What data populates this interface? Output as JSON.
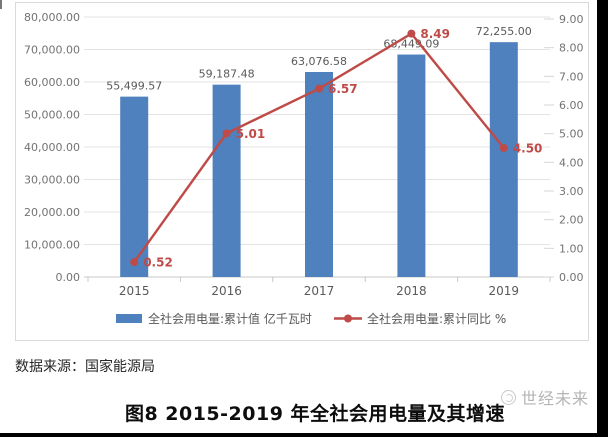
{
  "page": {
    "source_note": "数据来源：国家能源局",
    "caption": "图8 2015-2019 年全社会用电量及其增速",
    "watermark": "世经未来"
  },
  "chart_data": {
    "type": "bar",
    "subtype": "bar+line combo, dual axis",
    "categories": [
      "2015",
      "2016",
      "2017",
      "2018",
      "2019"
    ],
    "series": [
      {
        "name": "全社会用电量:累计值 亿千瓦时",
        "type": "bar",
        "axis": "left",
        "values": [
          55499.57,
          59187.48,
          63076.58,
          68449.09,
          72255.0
        ],
        "value_labels": [
          "55,499.57",
          "59,187.48",
          "63,076.58",
          "68,449.09",
          "72,255.00"
        ],
        "color": "#4e81bd"
      },
      {
        "name": "全社会用电量:累计同比 %",
        "type": "line",
        "axis": "right",
        "values": [
          0.52,
          5.01,
          6.57,
          8.49,
          4.5
        ],
        "value_labels": [
          "0.52",
          "5.01",
          "6.57",
          "8.49",
          "4.50"
        ],
        "color": "#be4b48"
      }
    ],
    "left_axis": {
      "min": 0,
      "max": 80000,
      "step": 10000,
      "ticks": [
        "0.00",
        "10,000.00",
        "20,000.00",
        "30,000.00",
        "40,000.00",
        "50,000.00",
        "60,000.00",
        "70,000.00",
        "80,000.00"
      ]
    },
    "right_axis": {
      "min": 0,
      "max": 9,
      "step": 1,
      "ticks": [
        "0.00",
        "1.00",
        "2.00",
        "3.00",
        "4.00",
        "5.00",
        "6.00",
        "7.00",
        "8.00",
        "9.00"
      ]
    },
    "grid": true,
    "legend_position": "bottom",
    "colors": {
      "bar": "#4e81bd",
      "line": "#be4b48",
      "gridline": "#e3e3e3",
      "axis_line": "#c8c8c8",
      "tick_label": "#737373",
      "bar_label": "#595959",
      "x_label": "#595959",
      "legend_label": "#595959"
    }
  }
}
